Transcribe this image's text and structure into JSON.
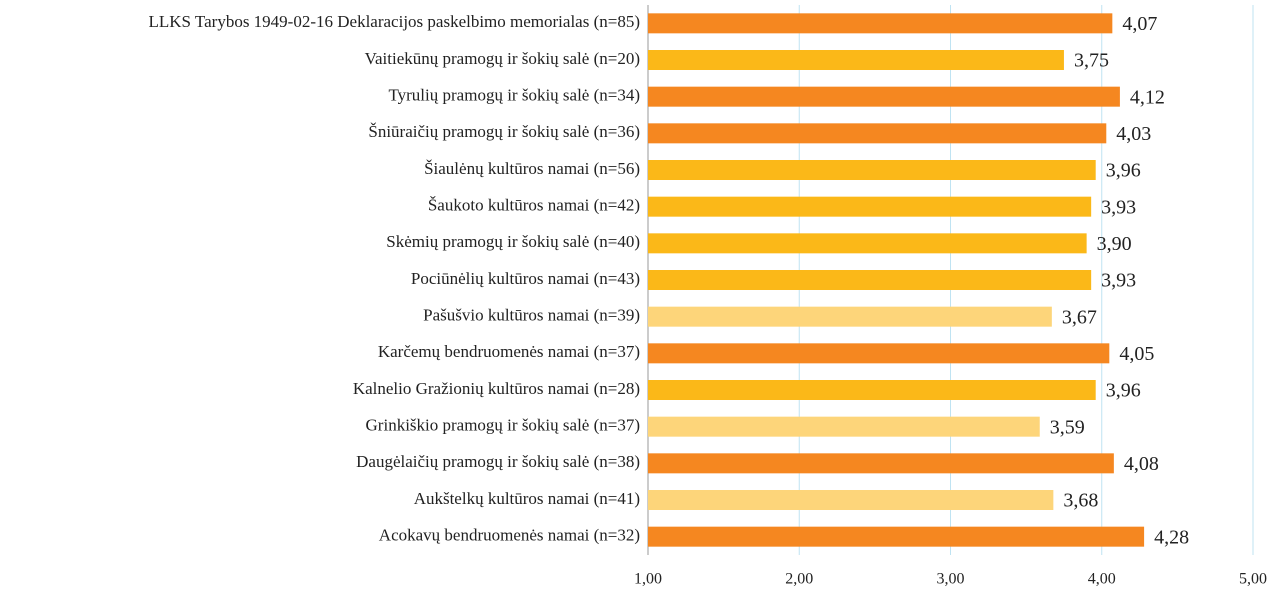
{
  "chart_data": {
    "type": "barh",
    "categories": [
      "LLKS Tarybos 1949-02-16 Deklaracijos paskelbimo memorialas (n=85)",
      "Vaitiekūnų pramogų ir šokių salė (n=20)",
      "Tyrulių pramogų ir šokių salė (n=34)",
      "Šniūraičių pramogų ir šokių salė (n=36)",
      "Šiaulėnų kultūros namai (n=56)",
      "Šaukoto kultūros namai (n=42)",
      "Skėmių pramogų ir šokių salė (n=40)",
      "Pociūnėlių kultūros namai (n=43)",
      "Pašušvio kultūros namai (n=39)",
      "Karčemų bendruomenės namai (n=37)",
      "Kalnelio Gražionių kultūros namai (n=28)",
      "Grinkiškio pramogų ir šokių salė (n=37)",
      "Daugėlaičių pramogų ir šokių salė (n=38)",
      "Aukštelkų kultūros namai (n=41)",
      "Acokavų bendruomenės namai (n=32)"
    ],
    "values": [
      4.07,
      3.75,
      4.12,
      4.03,
      3.96,
      3.93,
      3.9,
      3.93,
      3.67,
      4.05,
      3.96,
      3.59,
      4.08,
      3.68,
      4.28
    ],
    "value_labels": [
      "4,07",
      "3,75",
      "4,12",
      "4,03",
      "3,96",
      "3,93",
      "3,90",
      "3,93",
      "3,67",
      "4,05",
      "3,96",
      "3,59",
      "4,08",
      "3,68",
      "4,28"
    ],
    "colors": [
      "#f58720",
      "#fbb818",
      "#f58720",
      "#f58720",
      "#fbb818",
      "#fbb818",
      "#fbb818",
      "#fbb818",
      "#fdd57a",
      "#f58720",
      "#fbb818",
      "#fdd57a",
      "#f58720",
      "#fdd57a",
      "#f58720"
    ],
    "xlim": [
      1,
      5
    ],
    "xticks": [
      {
        "value": 1,
        "label": "1,00"
      },
      {
        "value": 2,
        "label": "2,00"
      },
      {
        "value": 3,
        "label": "3,00"
      },
      {
        "value": 4,
        "label": "4,00"
      },
      {
        "value": 5,
        "label": "5,00"
      }
    ],
    "grid": true
  }
}
